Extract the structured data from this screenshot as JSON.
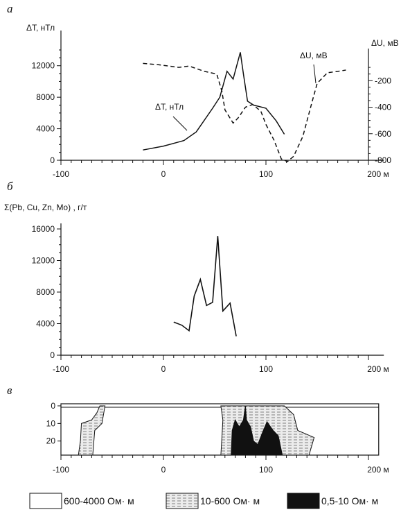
{
  "chart_data": [
    {
      "panel": "а",
      "type": "line",
      "xlabel": "м",
      "ylabel_left": "ΔT, нТл",
      "ylabel_right": "ΔU, мВ",
      "xlim": [
        -100,
        200
      ],
      "x_ticks": [
        -100,
        0,
        100,
        200
      ],
      "x_tick_labels": [
        "-100",
        "0",
        "100",
        "200 м"
      ],
      "ylim_left": [
        0,
        14000
      ],
      "y_ticks_left": [
        0,
        4000,
        8000,
        12000
      ],
      "ylim_right": [
        -800,
        0
      ],
      "y_ticks_right": [
        -200,
        -400,
        -600,
        -800
      ],
      "series": [
        {
          "name": "ΔT, нТл",
          "axis": "left",
          "style": "solid",
          "x": [
            -20,
            0,
            20,
            32,
            48,
            55,
            62,
            68,
            75,
            78,
            82,
            88,
            100,
            110,
            118
          ],
          "y": [
            1300,
            1800,
            2500,
            3600,
            6600,
            8000,
            11300,
            10300,
            13700,
            11000,
            7500,
            7000,
            6600,
            5000,
            3300
          ]
        },
        {
          "name": "ΔU, мВ",
          "axis": "right",
          "style": "dashed",
          "x": [
            -20,
            -5,
            15,
            25,
            40,
            52,
            57,
            60,
            64,
            68,
            73,
            80,
            87,
            95,
            100,
            108,
            115,
            121,
            127,
            136,
            145,
            150,
            160,
            170,
            178
          ],
          "y": [
            -70,
            -80,
            -100,
            -90,
            -130,
            -150,
            -280,
            -420,
            -470,
            -520,
            -480,
            -400,
            -380,
            -430,
            -530,
            -650,
            -790,
            -810,
            -770,
            -620,
            -360,
            -220,
            -140,
            -130,
            -120
          ]
        }
      ],
      "annotations": [
        "ΔT, нТл",
        "ΔU, мВ"
      ]
    },
    {
      "panel": "б",
      "type": "line",
      "ylabel": "Σ(Pb, Cu, Zn, Mo) , г/т",
      "xlim": [
        -100,
        200
      ],
      "x_ticks": [
        -100,
        0,
        100,
        200
      ],
      "x_tick_labels": [
        "-100",
        "0",
        "100",
        "200 м"
      ],
      "ylim": [
        0,
        16000
      ],
      "y_ticks": [
        0,
        4000,
        8000,
        12000,
        16000
      ],
      "series": [
        {
          "x": [
            10,
            18,
            25,
            30,
            36,
            42,
            48,
            53,
            58,
            65,
            71
          ],
          "y": [
            4200,
            3800,
            3100,
            7500,
            9600,
            6300,
            6700,
            15100,
            5600,
            6600,
            2400
          ]
        }
      ]
    },
    {
      "panel": "в",
      "type": "area",
      "xlim": [
        -100,
        200
      ],
      "x_ticks": [
        -100,
        0,
        100,
        200
      ],
      "x_tick_labels": [
        "-100",
        "0",
        "100",
        "200 м"
      ],
      "ylim": [
        0,
        28
      ],
      "y_ticks": [
        0,
        10,
        20
      ],
      "y_tick_labels": [
        "0",
        "10",
        "20"
      ],
      "legend": [
        {
          "label": "600-4000 Ом· м",
          "pattern": "white"
        },
        {
          "label": "10-600 Ом· м",
          "pattern": "dashed-hatch"
        },
        {
          "label": "0,5-10 Ом· м",
          "pattern": "black"
        }
      ],
      "bodies": [
        {
          "class": "10-600 Ом· м",
          "outline": [
            [
              -62,
              0
            ],
            [
              -57,
              0
            ],
            [
              -60,
              10
            ],
            [
              -67,
              14
            ],
            [
              -69,
              28
            ],
            [
              -83,
              28
            ],
            [
              -81,
              20
            ],
            [
              -80,
              10
            ],
            [
              -70,
              8
            ],
            [
              -65,
              4
            ]
          ]
        },
        {
          "class": "10-600 Ом· м",
          "outline": [
            [
              56,
              0
            ],
            [
              118,
              0
            ],
            [
              127,
              5
            ],
            [
              131,
              14
            ],
            [
              147,
              18
            ],
            [
              142,
              28
            ],
            [
              56,
              28
            ],
            [
              57,
              18
            ],
            [
              58,
              8
            ]
          ]
        },
        {
          "class": "0,5-10 Ом· м",
          "outline": [
            [
              66,
              28
            ],
            [
              67,
              14
            ],
            [
              70,
              8
            ],
            [
              74,
              12
            ],
            [
              78,
              8
            ],
            [
              80,
              0
            ],
            [
              81,
              8
            ],
            [
              85,
              12
            ],
            [
              88,
              20
            ],
            [
              92,
              22
            ],
            [
              96,
              16
            ],
            [
              101,
              9
            ],
            [
              107,
              14
            ],
            [
              112,
              17
            ],
            [
              116,
              28
            ]
          ]
        }
      ]
    }
  ],
  "panels": {
    "a_letter": "а",
    "b_letter": "б",
    "v_letter": "в"
  }
}
